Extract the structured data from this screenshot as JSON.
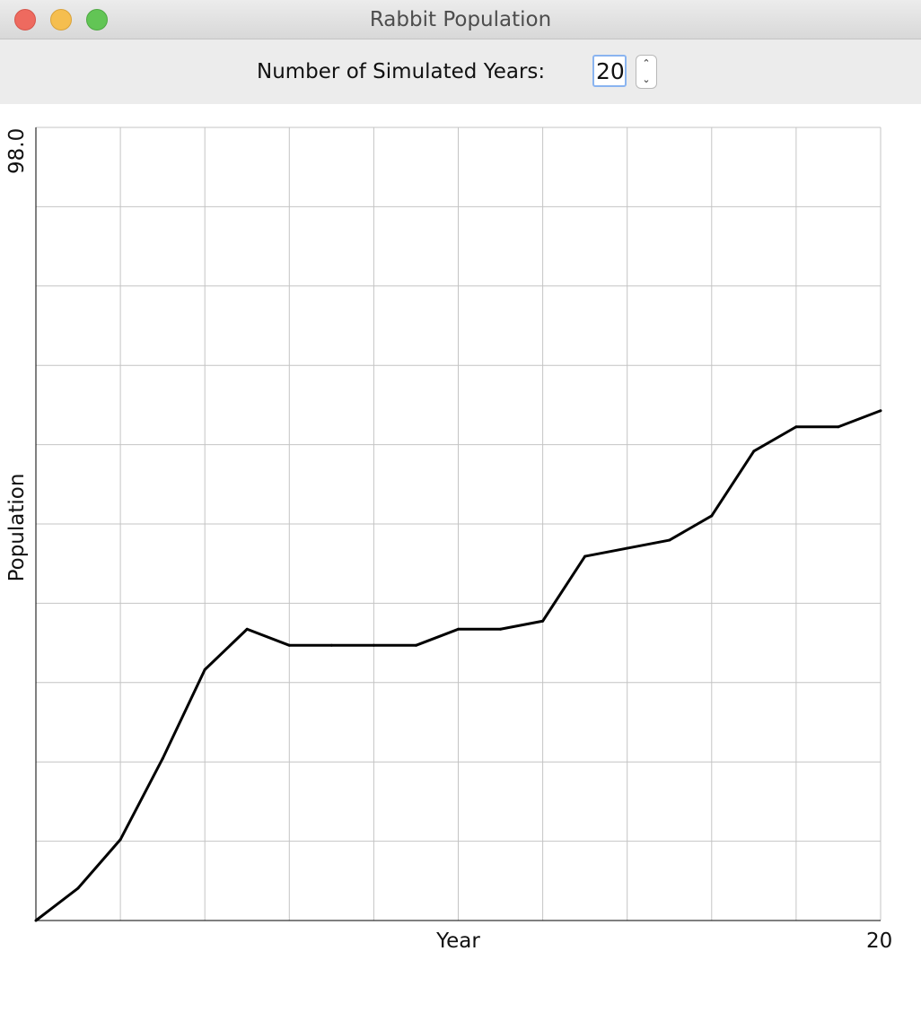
{
  "window": {
    "title": "Rabbit Population",
    "controls": [
      "close",
      "minimize",
      "maximize"
    ]
  },
  "toolbar": {
    "years_label": "Number of Simulated Years:",
    "years_value": "20",
    "stepper_up_icon": "chevron-up-icon",
    "stepper_down_icon": "chevron-down-icon"
  },
  "chart_data": {
    "type": "line",
    "title": "",
    "xlabel": "Year",
    "ylabel": "Population",
    "x_tick_labels": {
      "max": "20"
    },
    "y_tick_labels": {
      "max": "98.0"
    },
    "xlim": [
      0,
      20
    ],
    "ylim": [
      0,
      98.0
    ],
    "grid": true,
    "x": [
      0,
      1,
      2,
      3,
      4,
      5,
      6,
      7,
      8,
      9,
      10,
      11,
      12,
      13,
      14,
      15,
      16,
      17,
      18,
      19,
      20
    ],
    "series": [
      {
        "values": [
          0,
          4,
          10,
          20,
          31,
          36,
          34,
          34,
          34,
          34,
          36,
          36,
          37,
          45,
          46,
          47,
          50,
          58,
          61,
          61,
          63
        ]
      }
    ],
    "line_color": "#000000",
    "grid_color": "#c4c4c4"
  }
}
